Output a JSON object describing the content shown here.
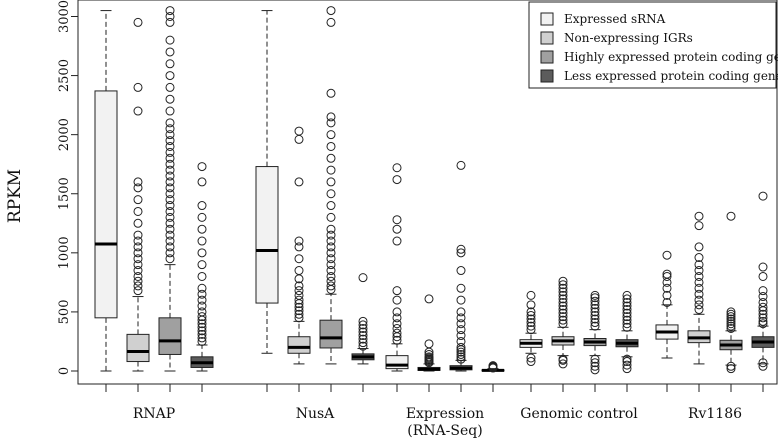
{
  "chart_data": {
    "type": "boxplot",
    "ylabel": "RPKM",
    "ylim": [
      -150,
      3050
    ],
    "yticks": [
      0,
      500,
      1000,
      1500,
      2000,
      2500,
      3000
    ],
    "grid": false,
    "legend_position": "top-right",
    "groups": [
      {
        "label": "RNAP"
      },
      {
        "label": "NusA"
      },
      {
        "label": "Expression",
        "label2": "(RNA-Seq)"
      },
      {
        "label": "Genomic control"
      },
      {
        "label": "Rv1186"
      }
    ],
    "series": [
      {
        "name": "Expressed sRNA",
        "color": "#f2f2f2"
      },
      {
        "name": "Non-expressing IGRs",
        "color": "#d0d0d0"
      },
      {
        "name": "Highly expressed protein coding genes",
        "color": "#a0a0a0"
      },
      {
        "name": "Less expressed protein coding genes",
        "color": "#5c5c5c"
      }
    ],
    "boxes": [
      {
        "group": 0,
        "series": 0,
        "min": 0,
        "q1": 450,
        "median": 1075,
        "q3": 2370,
        "max": 3050,
        "outliers": []
      },
      {
        "group": 0,
        "series": 1,
        "min": 0,
        "q1": 80,
        "median": 165,
        "q3": 310,
        "max": 630,
        "outliers": [
          680,
          720,
          760,
          800,
          850,
          900,
          950,
          1000,
          1050,
          1100,
          1150,
          1250,
          1350,
          1450,
          1550,
          1600,
          2200,
          2400,
          2950
        ]
      },
      {
        "group": 0,
        "series": 2,
        "min": 0,
        "q1": 140,
        "median": 255,
        "q3": 450,
        "max": 900,
        "outliers": [
          950,
          1000,
          1050,
          1100,
          1150,
          1200,
          1250,
          1300,
          1350,
          1400,
          1450,
          1500,
          1550,
          1600,
          1650,
          1700,
          1750,
          1800,
          1850,
          1900,
          1950,
          2000,
          2050,
          2100,
          2200,
          2300,
          2400,
          2500,
          2600,
          2700,
          2800,
          2950,
          3000,
          3050
        ]
      },
      {
        "group": 0,
        "series": 3,
        "min": 0,
        "q1": 30,
        "median": 70,
        "q3": 120,
        "max": 220,
        "outliers": [
          250,
          280,
          310,
          340,
          370,
          400,
          430,
          460,
          500,
          550,
          600,
          650,
          700,
          800,
          900,
          1000,
          1100,
          1200,
          1300,
          1400,
          1600,
          1730
        ]
      },
      {
        "group": 1,
        "series": 0,
        "min": 150,
        "q1": 575,
        "median": 1020,
        "q3": 1730,
        "max": 3050,
        "outliers": []
      },
      {
        "group": 1,
        "series": 1,
        "min": 60,
        "q1": 150,
        "median": 200,
        "q3": 290,
        "max": 420,
        "outliers": [
          450,
          480,
          510,
          540,
          570,
          600,
          640,
          680,
          720,
          780,
          850,
          950,
          1050,
          1100,
          1600,
          1960,
          2030
        ]
      },
      {
        "group": 1,
        "series": 2,
        "min": 60,
        "q1": 195,
        "median": 280,
        "q3": 430,
        "max": 650,
        "outliers": [
          690,
          720,
          760,
          800,
          850,
          900,
          950,
          1000,
          1050,
          1100,
          1150,
          1200,
          1300,
          1400,
          1500,
          1600,
          1700,
          1800,
          1900,
          2000,
          2100,
          2150,
          2350,
          2950,
          3050
        ]
      },
      {
        "group": 1,
        "series": 3,
        "min": 60,
        "q1": 95,
        "median": 120,
        "q3": 145,
        "max": 190,
        "outliers": [
          210,
          240,
          270,
          300,
          330,
          360,
          390,
          420,
          790
        ]
      },
      {
        "group": 2,
        "series": 0,
        "min": 0,
        "q1": 20,
        "median": 50,
        "q3": 130,
        "max": 230,
        "outliers": [
          260,
          290,
          320,
          360,
          400,
          450,
          500,
          600,
          680,
          1100,
          1200,
          1280,
          1620,
          1720
        ]
      },
      {
        "group": 2,
        "series": 1,
        "min": 0,
        "q1": 5,
        "median": 15,
        "q3": 30,
        "max": 60,
        "outliers": [
          70,
          80,
          90,
          100,
          110,
          120,
          140,
          160,
          230,
          610
        ]
      },
      {
        "group": 2,
        "series": 2,
        "min": 0,
        "q1": 10,
        "median": 25,
        "q3": 45,
        "max": 90,
        "outliers": [
          100,
          120,
          140,
          160,
          180,
          200,
          250,
          300,
          350,
          400,
          450,
          500,
          600,
          700,
          850,
          1000,
          1030,
          1740
        ]
      },
      {
        "group": 2,
        "series": 3,
        "min": 0,
        "q1": 0,
        "median": 5,
        "q3": 10,
        "max": 20,
        "outliers": [
          25,
          30,
          35,
          40,
          45
        ]
      },
      {
        "group": 3,
        "series": 0,
        "min": 150,
        "q1": 200,
        "median": 235,
        "q3": 265,
        "max": 320,
        "outliers": [
          80,
          110,
          350,
          380,
          410,
          440,
          470,
          500,
          560,
          640
        ]
      },
      {
        "group": 3,
        "series": 1,
        "min": 130,
        "q1": 220,
        "median": 255,
        "q3": 290,
        "max": 370,
        "outliers": [
          60,
          90,
          100,
          400,
          430,
          460,
          490,
          520,
          550,
          580,
          610,
          640,
          670,
          700,
          730,
          760
        ]
      },
      {
        "group": 3,
        "series": 2,
        "min": 130,
        "q1": 215,
        "median": 245,
        "q3": 275,
        "max": 350,
        "outliers": [
          10,
          40,
          70,
          100,
          380,
          410,
          440,
          470,
          500,
          530,
          560,
          590,
          620,
          640
        ]
      },
      {
        "group": 3,
        "series": 3,
        "min": 120,
        "q1": 205,
        "median": 235,
        "q3": 265,
        "max": 340,
        "outliers": [
          20,
          50,
          80,
          100,
          370,
          400,
          430,
          460,
          490,
          520,
          550,
          580,
          610,
          640
        ]
      },
      {
        "group": 4,
        "series": 0,
        "min": 110,
        "q1": 270,
        "median": 330,
        "q3": 390,
        "max": 560,
        "outliers": [
          580,
          640,
          700,
          750,
          800,
          820,
          980
        ]
      },
      {
        "group": 4,
        "series": 1,
        "min": 60,
        "q1": 240,
        "median": 280,
        "q3": 340,
        "max": 480,
        "outliers": [
          520,
          560,
          600,
          650,
          700,
          750,
          800,
          850,
          900,
          960,
          1050,
          1230,
          1310
        ]
      },
      {
        "group": 4,
        "series": 2,
        "min": 50,
        "q1": 180,
        "median": 220,
        "q3": 260,
        "max": 340,
        "outliers": [
          20,
          40,
          360,
          380,
          400,
          420,
          440,
          460,
          480,
          500,
          1310
        ]
      },
      {
        "group": 4,
        "series": 3,
        "min": 60,
        "q1": 200,
        "median": 245,
        "q3": 290,
        "max": 380,
        "outliers": [
          40,
          70,
          400,
          420,
          450,
          480,
          510,
          540,
          580,
          630,
          680,
          800,
          880,
          1480
        ]
      }
    ]
  }
}
